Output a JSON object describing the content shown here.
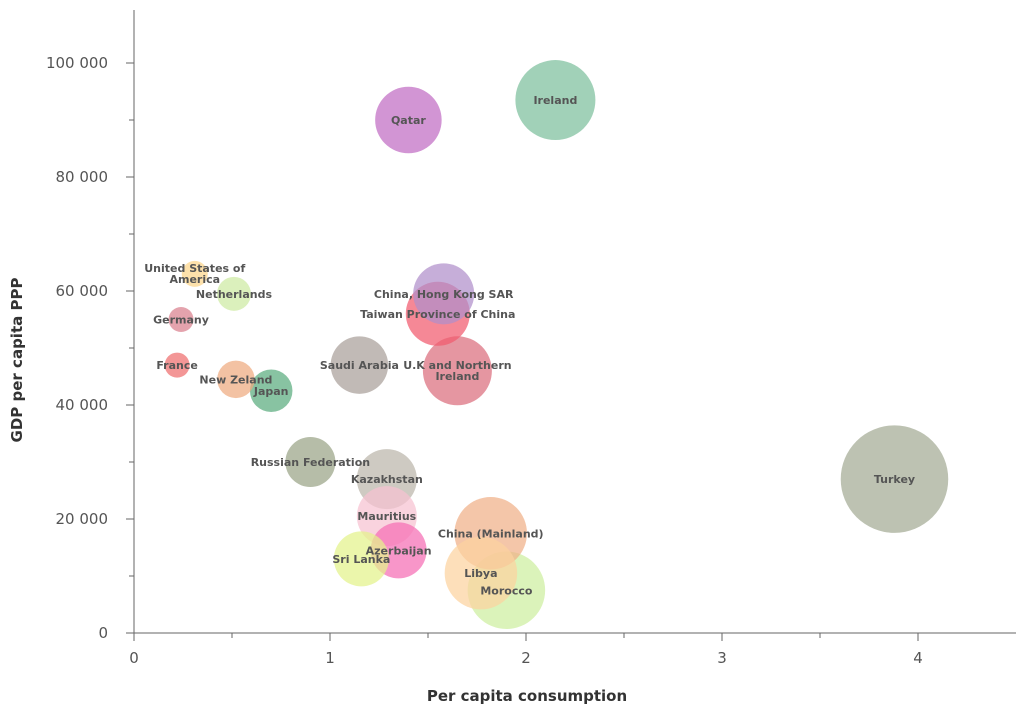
{
  "chart_data": {
    "type": "scatter",
    "title": "",
    "xlabel": "Per capita consumption",
    "ylabel": "GDP per capita PPP",
    "xlim": [
      0,
      4.5
    ],
    "ylim": [
      0,
      110000
    ],
    "x_ticks": [
      0,
      1,
      2,
      3,
      4
    ],
    "x_tick_labels": [
      "0",
      "1",
      "2",
      "3",
      "4"
    ],
    "y_ticks": [
      0,
      20000,
      40000,
      60000,
      80000,
      100000
    ],
    "y_tick_labels": [
      "0",
      "20 000",
      "40 000",
      "60 000",
      "80 000",
      "100 000"
    ],
    "grid": false,
    "legend": "none",
    "points": [
      {
        "label": "Ireland",
        "x": 2.15,
        "y": 93500,
        "size": 1.6,
        "color": "#7dbf9c"
      },
      {
        "label": "Qatar",
        "x": 1.4,
        "y": 90000,
        "size": 1.33,
        "color": "#c06cc3"
      },
      {
        "label": "United States of America",
        "x": 0.31,
        "y": 63000,
        "size": 0.52,
        "color": "#fcd58a"
      },
      {
        "label": "Netherlands",
        "x": 0.51,
        "y": 59500,
        "size": 0.68,
        "color": "#cdeaa2"
      },
      {
        "label": "Germany",
        "x": 0.24,
        "y": 55000,
        "size": 0.5,
        "color": "#d9808e"
      },
      {
        "label": "France",
        "x": 0.22,
        "y": 47000,
        "size": 0.5,
        "color": "#ef6e6e"
      },
      {
        "label": "New Zeland",
        "x": 0.52,
        "y": 44500,
        "size": 0.75,
        "color": "#eeaa80"
      },
      {
        "label": "Japan",
        "x": 0.7,
        "y": 42500,
        "size": 0.85,
        "color": "#5aac7e"
      },
      {
        "label": "Saudi Arabia",
        "x": 1.15,
        "y": 47000,
        "size": 1.15,
        "color": "#a9a09a"
      },
      {
        "label": "China, Hong Kong SAR",
        "x": 1.58,
        "y": 59500,
        "size": 1.22,
        "color": "#b08fcb"
      },
      {
        "label": "Taiwan Province of China",
        "x": 1.55,
        "y": 56000,
        "size": 1.28,
        "color": "#f15a6e"
      },
      {
        "label": "U.K and Northern Ireland",
        "x": 1.65,
        "y": 46000,
        "size": 1.38,
        "color": "#db6d7d"
      },
      {
        "label": "Russian Federation",
        "x": 0.9,
        "y": 30000,
        "size": 1.0,
        "color": "#9aa386"
      },
      {
        "label": "Kazakhstan",
        "x": 1.29,
        "y": 27000,
        "size": 1.2,
        "color": "#bbb5aa"
      },
      {
        "label": "Turkey",
        "x": 3.88,
        "y": 27000,
        "size": 2.15,
        "color": "#a3ab94"
      },
      {
        "label": "Mauritius",
        "x": 1.29,
        "y": 20500,
        "size": 1.2,
        "color": "#f7c2d1"
      },
      {
        "label": "China (Mainland)",
        "x": 1.82,
        "y": 17500,
        "size": 1.45,
        "color": "#f0b088"
      },
      {
        "label": "Azerbaijan",
        "x": 1.35,
        "y": 14500,
        "size": 1.12,
        "color": "#f56eb4"
      },
      {
        "label": "Sri Lanka",
        "x": 1.16,
        "y": 13000,
        "size": 1.1,
        "color": "#e3f28b"
      },
      {
        "label": "Libya",
        "x": 1.77,
        "y": 10500,
        "size": 1.45,
        "color": "#fcd2a0"
      },
      {
        "label": "Morocco",
        "x": 1.9,
        "y": 7500,
        "size": 1.55,
        "color": "#cdeea0"
      }
    ]
  }
}
